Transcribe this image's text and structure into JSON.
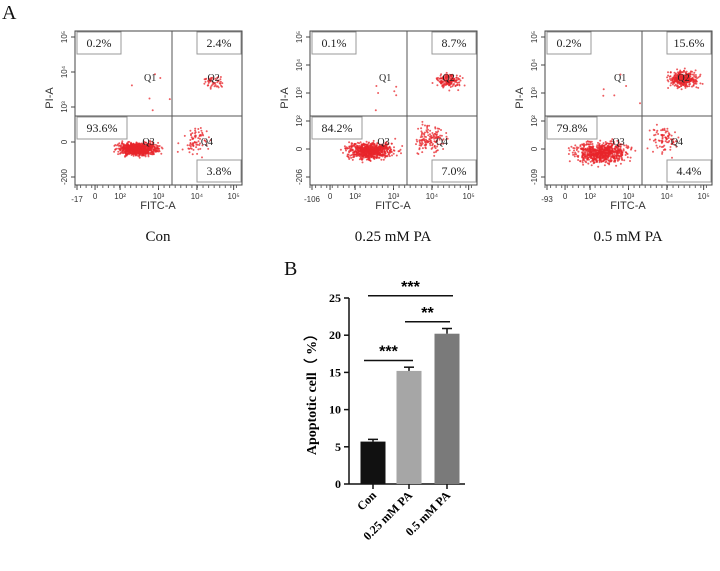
{
  "panel_a_label": "A",
  "panel_b_label": "B",
  "chart_data": [
    {
      "type": "scatter",
      "title": "Con",
      "xlabel": "FITC-A",
      "ylabel": "PI-A",
      "x_ticks": [
        "-17",
        "0",
        "10²",
        "10³",
        "10⁴",
        "10⁵"
      ],
      "y_ticks": [
        "-200",
        "0",
        "10³",
        "10⁴",
        "10⁵"
      ],
      "quadrants": {
        "Q1": 0.2,
        "Q2": 2.4,
        "Q3": 93.6,
        "Q4": 3.8
      },
      "quadrant_labels": {
        "Q1": "0.2%",
        "Q2": "2.4%",
        "Q3": "93.6%",
        "Q4": "3.8%"
      },
      "gate_names": [
        "Q1",
        "Q2",
        "Q3",
        "Q4"
      ],
      "dot_color": "#e8262b"
    },
    {
      "type": "scatter",
      "title": "0.25 mM PA",
      "xlabel": "FITC-A",
      "ylabel": "PI-A",
      "x_ticks": [
        "-106",
        "0",
        "10²",
        "10³",
        "10⁴",
        "10⁵"
      ],
      "y_ticks": [
        "-206",
        "0",
        "10²",
        "10³",
        "10⁴",
        "10⁵"
      ],
      "quadrants": {
        "Q1": 0.1,
        "Q2": 8.7,
        "Q3": 84.2,
        "Q4": 7.0
      },
      "quadrant_labels": {
        "Q1": "0.1%",
        "Q2": "8.7%",
        "Q3": "84.2%",
        "Q4": "7.0%"
      },
      "gate_names": [
        "Q1",
        "Q2",
        "Q3",
        "Q4"
      ],
      "dot_color": "#e8262b"
    },
    {
      "type": "scatter",
      "title": "0.5 mM PA",
      "xlabel": "FITC-A",
      "ylabel": "PI-A",
      "x_ticks": [
        "-93",
        "0",
        "10²",
        "10³",
        "10⁴",
        "10⁵"
      ],
      "y_ticks": [
        "-109",
        "0",
        "10²",
        "10³",
        "10⁴",
        "10⁵"
      ],
      "quadrants": {
        "Q1": 0.2,
        "Q2": 15.6,
        "Q3": 79.8,
        "Q4": 4.4
      },
      "quadrant_labels": {
        "Q1": "0.2%",
        "Q2": "15.6%",
        "Q3": "79.8%",
        "Q4": "4.4%"
      },
      "gate_names": [
        "Q1",
        "Q2",
        "Q3",
        "Q4"
      ],
      "dot_color": "#e8262b"
    },
    {
      "type": "bar",
      "categories": [
        "Con",
        "0.25 mM PA",
        "0.5 mM PA"
      ],
      "values": [
        5.7,
        15.2,
        20.2
      ],
      "errors": [
        0.3,
        0.5,
        0.7
      ],
      "colors": [
        "#111111",
        "#a6a6a6",
        "#7a7a7a"
      ],
      "ylabel": "Apoptotic cell（ %）",
      "ylim": [
        0,
        25
      ],
      "y_ticks": [
        "0",
        "5",
        "10",
        "15",
        "20",
        "25"
      ],
      "significance": [
        {
          "from": 0,
          "to": 1,
          "label": "***"
        },
        {
          "from": 1,
          "to": 2,
          "label": "**"
        },
        {
          "from": 0,
          "to": 2,
          "label": "***"
        }
      ]
    }
  ]
}
